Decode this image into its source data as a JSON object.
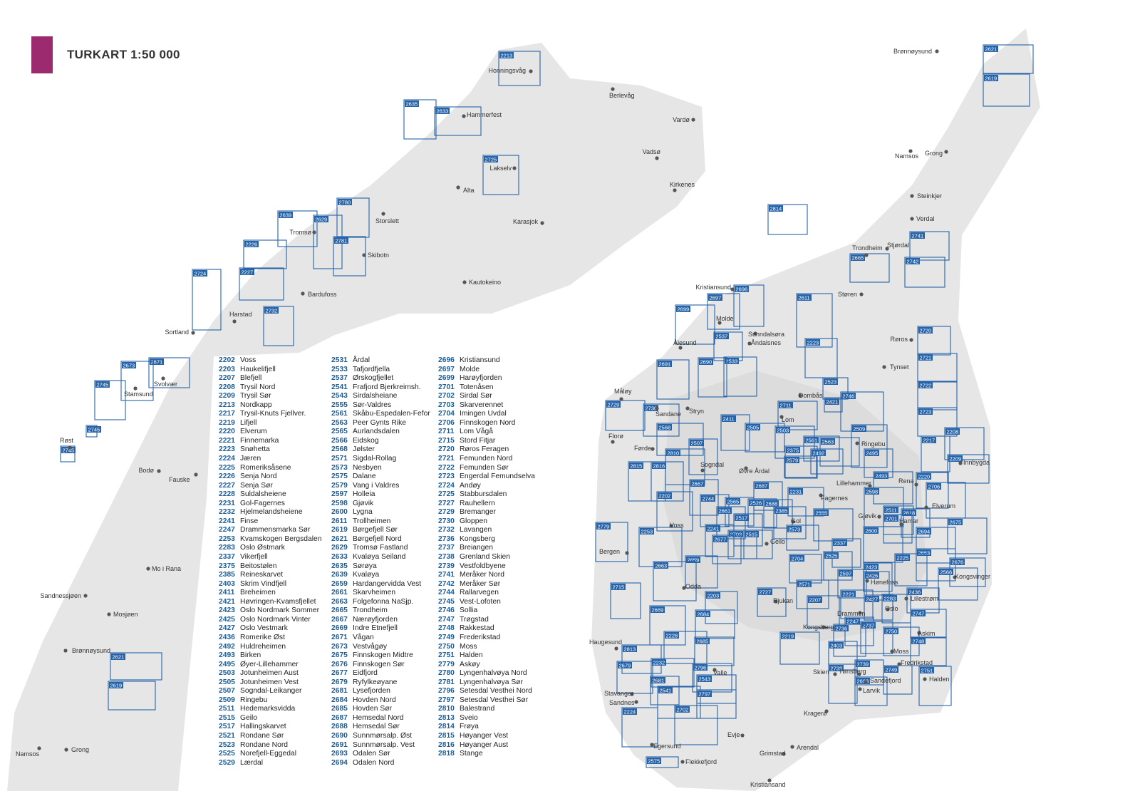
{
  "header": {
    "title": "TURKART 1:50 000",
    "accent_color": "#9b2a6f"
  },
  "colors": {
    "sheet_outline": "#2763a8",
    "land": "#e4e4e4",
    "sea": "#ffffff"
  },
  "map": {
    "north_cities": [
      "Honningsvåg",
      "Berlevåg",
      "Hammerfest",
      "Vardø",
      "Vadsø",
      "Lakselv",
      "Alta",
      "Kirkenes",
      "Storslett",
      "Karasjok",
      "Tromsø",
      "Skibotn",
      "Bardufoss",
      "Kautokeino",
      "Harstad",
      "Sortland",
      "Svolvær",
      "Stamsund",
      "Røst",
      "Bodø",
      "Fauske",
      "Mo i Rana",
      "Sandnessjøen",
      "Mosjøen",
      "Brønnøysund",
      "Namsos",
      "Grong"
    ],
    "south_cities": [
      "Brønnøysund",
      "Namsos",
      "Grong",
      "Steinkjer",
      "Verdal",
      "Trondheim",
      "Stjørdal",
      "Støren",
      "Kristiansund",
      "Molde",
      "Ålesund",
      "Sunndalsøra",
      "Åndalsnes",
      "Røros",
      "Tynset",
      "Måløy",
      "Dombås",
      "Stryn",
      "Sandane",
      "Lom",
      "Florø",
      "Førde",
      "Ringebu",
      "Sogndal",
      "Øvre Årdal",
      "Lillehammer",
      "Fagernes",
      "Rena",
      "Innbygda",
      "Elverum",
      "Gjøvik",
      "Hamar",
      "Voss",
      "Gol",
      "Geilo",
      "Bergen",
      "Odda",
      "Hønefoss",
      "Kongsvinger",
      "Lillestrøm",
      "Oslo",
      "Rjukan",
      "Drammen",
      "Kongsberg",
      "Askim",
      "Haugesund",
      "Moss",
      "Fredrikstad",
      "Halden",
      "Tønsberg",
      "Sandefjord",
      "Larvik",
      "Skien",
      "Valle",
      "Stavanger",
      "Sandnes",
      "Kragerø",
      "Egersund",
      "Evje",
      "Grimstad",
      "Arendal",
      "Flekkefjord",
      "Kristiansand"
    ],
    "sheets": [
      "2213",
      "2635",
      "2633",
      "2725",
      "2780",
      "2639",
      "2629",
      "2781",
      "2226",
      "2227",
      "2724",
      "2732",
      "2671",
      "2673",
      "2745",
      "2745",
      "2745",
      "2621",
      "2619",
      "2621",
      "2619",
      "2814",
      "2741",
      "2742",
      "2665",
      "2696",
      "2697",
      "2699",
      "2611",
      "2537",
      "2223",
      "2720",
      "2533",
      "2690",
      "2721",
      "2523",
      "2691",
      "2722",
      "2729",
      "2730",
      "2746",
      "2421",
      "2711",
      "2723",
      "2568",
      "2411",
      "2505",
      "2503",
      "2509",
      "2561",
      "2563",
      "2208",
      "2217",
      "2507",
      "2375",
      "2810",
      "2492",
      "2495",
      "2579",
      "2209",
      "2815",
      "2816",
      "2687",
      "2493",
      "2220",
      "2706",
      "2667",
      "2231",
      "2598",
      "2202",
      "2744",
      "2565",
      "2526",
      "2688",
      "2661",
      "2385",
      "2555",
      "2511",
      "2818",
      "2701",
      "2675",
      "2779",
      "2517",
      "2573",
      "2241",
      "2253",
      "2694",
      "2600",
      "2703",
      "2515",
      "2677",
      "2337",
      "2653",
      "2704",
      "2659",
      "2525",
      "2225",
      "2676",
      "2663",
      "2566",
      "2423",
      "2597",
      "2426",
      "2571",
      "2715",
      "2727",
      "2436",
      "2203",
      "2221",
      "2427",
      "2283",
      "2207",
      "2747",
      "2669",
      "2684",
      "2247",
      "2737",
      "2736",
      "2750",
      "2219",
      "2228",
      "2685",
      "2748",
      "2403",
      "2813",
      "2232",
      "2679",
      "2796",
      "2739",
      "2749",
      "2751",
      "2738",
      "2693",
      "2543",
      "2681",
      "2541",
      "2797",
      "2224",
      "2702",
      "2575"
    ]
  },
  "index": {
    "columns": [
      [
        [
          "2202",
          "Voss"
        ],
        [
          "2203",
          "Haukelifjell"
        ],
        [
          "2207",
          "Blefjell"
        ],
        [
          "2208",
          "Trysil Nord"
        ],
        [
          "2209",
          "Trysil Sør"
        ],
        [
          "2213",
          "Nordkapp"
        ],
        [
          "2217",
          "Trysil-Knuts Fjellver."
        ],
        [
          "2219",
          "Lifjell"
        ],
        [
          "2220",
          "Elverum"
        ],
        [
          "2221",
          "Finnemarka"
        ],
        [
          "2223",
          "Snøhetta"
        ],
        [
          "2224",
          "Jæren"
        ],
        [
          "2225",
          "Romeriksåsene"
        ],
        [
          "2226",
          "Senja Nord"
        ],
        [
          "2227",
          "Senja Sør"
        ],
        [
          "2228",
          "Suldalsheiene"
        ],
        [
          "2231",
          "Gol-Fagernes"
        ],
        [
          "2232",
          "Hjelmelandsheiene"
        ],
        [
          "2241",
          "Finse"
        ],
        [
          "2247",
          "Drammensmarka Sør"
        ],
        [
          "2253",
          "Kvamskogen Bergsdalen"
        ],
        [
          "2283",
          "Oslo Østmark"
        ],
        [
          "2337",
          "Vikerfjell"
        ],
        [
          "2375",
          "Beitostølen"
        ],
        [
          "2385",
          "Reineskarvet"
        ],
        [
          "2403",
          "Skrim Vindfjell"
        ],
        [
          "2411",
          "Breheimen"
        ],
        [
          "2421",
          "Høvringen-Kvamsfjellet"
        ],
        [
          "2423",
          "Oslo Nordmark Sommer"
        ],
        [
          "2425",
          "Oslo Nordmark Vinter"
        ],
        [
          "2427",
          "Oslo Vestmark"
        ],
        [
          "2436",
          "Romerike Øst"
        ],
        [
          "2492",
          "Huldreheimen"
        ],
        [
          "2493",
          "Birken"
        ],
        [
          "2495",
          "Øyer-Lillehammer"
        ],
        [
          "2503",
          "Jotunheimen Aust"
        ],
        [
          "2505",
          "Jotunheimen Vest"
        ],
        [
          "2507",
          "Sogndal-Leikanger"
        ],
        [
          "2509",
          "Ringebu"
        ],
        [
          "2511",
          "Hedemarksvidda"
        ],
        [
          "2515",
          "Geilo"
        ],
        [
          "2517",
          "Hallingskarvet"
        ],
        [
          "2521",
          "Rondane Sør"
        ],
        [
          "2523",
          "Rondane Nord"
        ],
        [
          "2525",
          "Norefjell-Eggedal"
        ],
        [
          "2529",
          "Lærdal"
        ]
      ],
      [
        [
          "2531",
          "Årdal"
        ],
        [
          "2533",
          "Tafjordfjella"
        ],
        [
          "2537",
          "Ørskogfjellet"
        ],
        [
          "2541",
          "Frafjord Bjerkreimsh."
        ],
        [
          "2543",
          "Sirdalsheiane"
        ],
        [
          "2555",
          "Sør-Valdres"
        ],
        [
          "2561",
          "Skåbu-Espedalen-Fefor"
        ],
        [
          "2563",
          "Peer Gynts Rike"
        ],
        [
          "2565",
          "Aurlandsdalen"
        ],
        [
          "2566",
          "Eidskog"
        ],
        [
          "2568",
          "Jølster"
        ],
        [
          "2571",
          "Sigdal-Rollag"
        ],
        [
          "2573",
          "Nesbyen"
        ],
        [
          "2575",
          "Dalane"
        ],
        [
          "2579",
          "Vang i Valdres"
        ],
        [
          "2597",
          "Holleia"
        ],
        [
          "2598",
          "Gjøvik"
        ],
        [
          "2600",
          "Lygna"
        ],
        [
          "2611",
          "Trollheimen"
        ],
        [
          "2619",
          "Børgefjell Sør"
        ],
        [
          "2621",
          "Børgefjell Nord"
        ],
        [
          "2629",
          "Tromsø Fastland"
        ],
        [
          "2633",
          "Kvaløya Seiland"
        ],
        [
          "2635",
          "Sørøya"
        ],
        [
          "2639",
          "Kvaløya"
        ],
        [
          "2659",
          "Hardangervidda Vest"
        ],
        [
          "2661",
          "Skarvheimen"
        ],
        [
          "2663",
          "Folgefonna NaSjp."
        ],
        [
          "2665",
          "Trondheim"
        ],
        [
          "2667",
          "Nærøyfjorden"
        ],
        [
          "2669",
          "Indre Etnefjell"
        ],
        [
          "2671",
          "Vågan"
        ],
        [
          "2673",
          "Vestvågøy"
        ],
        [
          "2675",
          "Finnskogen Midtre"
        ],
        [
          "2676",
          "Finnskogen Sør"
        ],
        [
          "2677",
          "Eidfjord"
        ],
        [
          "2679",
          "Ryfylkeøyane"
        ],
        [
          "2681",
          "Lysefjorden"
        ],
        [
          "2684",
          "Hovden Nord"
        ],
        [
          "2685",
          "Hovden Sør"
        ],
        [
          "2687",
          "Hemsedal Nord"
        ],
        [
          "2688",
          "Hemsedal Sør"
        ],
        [
          "2690",
          "Sunnmørsalp. Øst"
        ],
        [
          "2691",
          "Sunnmørsalp. Vest"
        ],
        [
          "2693",
          "Odalen Sør"
        ],
        [
          "2694",
          "Odalen Nord"
        ]
      ],
      [
        [
          "2696",
          "Kristiansund"
        ],
        [
          "2697",
          "Molde"
        ],
        [
          "2699",
          "Harøyfjorden"
        ],
        [
          "2701",
          "Totenåsen"
        ],
        [
          "2702",
          "Sirdal Sør"
        ],
        [
          "2703",
          "Skarverennet"
        ],
        [
          "2704",
          "Imingen Uvdal"
        ],
        [
          "2706",
          "Finnskogen Nord"
        ],
        [
          "2711",
          "Lom Vågå"
        ],
        [
          "2715",
          "Stord Fitjar"
        ],
        [
          "2720",
          "Røros Feragen"
        ],
        [
          "2721",
          "Femunden Nord"
        ],
        [
          "2722",
          "Femunden Sør"
        ],
        [
          "2723",
          "Engerdal Femundselva"
        ],
        [
          "2724",
          "Andøy"
        ],
        [
          "2725",
          "Stabbursdalen"
        ],
        [
          "2727",
          "Rauhellern"
        ],
        [
          "2729",
          "Bremanger"
        ],
        [
          "2730",
          "Gloppen"
        ],
        [
          "2732",
          "Lavangen"
        ],
        [
          "2736",
          "Kongsberg"
        ],
        [
          "2737",
          "Breiangen"
        ],
        [
          "2738",
          "Grenland Skien"
        ],
        [
          "2739",
          "Vestfoldbyene"
        ],
        [
          "2741",
          "Meråker Nord"
        ],
        [
          "2742",
          "Meråker Sør"
        ],
        [
          "2744",
          "Rallarvegen"
        ],
        [
          "2745",
          "Vest-Lofoten"
        ],
        [
          "2746",
          "Sollia"
        ],
        [
          "2747",
          "Trøgstad"
        ],
        [
          "2748",
          "Rakkestad"
        ],
        [
          "2749",
          "Frederikstad"
        ],
        [
          "2750",
          "Moss"
        ],
        [
          "2751",
          "Halden"
        ],
        [
          "2779",
          "Askøy"
        ],
        [
          "2780",
          "Lyngenhalvøya Nord"
        ],
        [
          "2781",
          "Lyngenhalvøya Sør"
        ],
        [
          "2796",
          "Setesdal Vesthei Nord"
        ],
        [
          "2797",
          "Setesdal Vesthei Sør"
        ],
        [
          "2810",
          "Balestrand"
        ],
        [
          "2813",
          "Sveio"
        ],
        [
          "2814",
          "Frøya"
        ],
        [
          "2815",
          "Høyanger Vest"
        ],
        [
          "2816",
          "Høyanger Aust"
        ],
        [
          "2818",
          "Stange"
        ]
      ]
    ]
  }
}
